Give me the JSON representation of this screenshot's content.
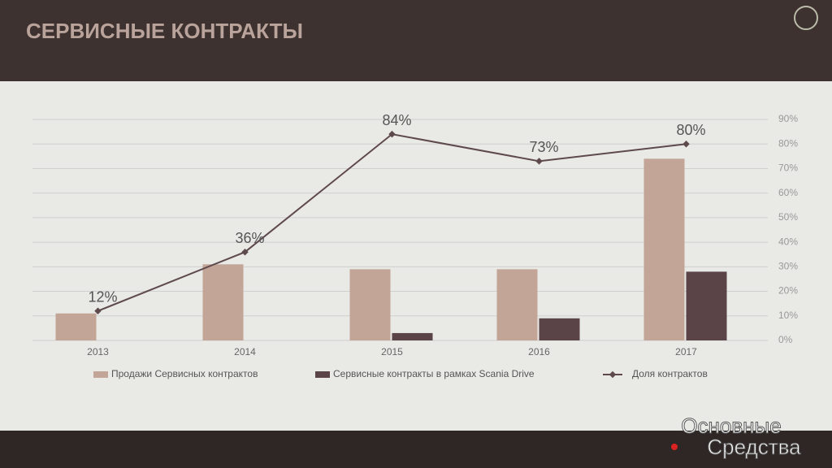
{
  "chart_data": {
    "type": "bar",
    "title": "СЕРВИСНЫЕ КОНТРАКТЫ",
    "categories": [
      "2013",
      "2014",
      "2015",
      "2016",
      "2017"
    ],
    "series": [
      {
        "name": "Продажи Сервисных контрактов",
        "color": "#c3a597",
        "values": [
          11,
          31,
          29,
          29,
          74
        ]
      },
      {
        "name": "Сервисные контракты в рамках Scania Drive",
        "color": "#5a4447",
        "values": [
          0,
          0,
          3,
          9,
          28
        ]
      },
      {
        "name": "Доля контрактов",
        "type": "line",
        "color": "#5e4a4c",
        "values": [
          12,
          36,
          84,
          73,
          80
        ],
        "value_labels": [
          "12%",
          "36%",
          "84%",
          "73%",
          "80%"
        ]
      }
    ],
    "ylim": [
      0,
      90
    ],
    "yticks": [
      {
        "value": 0,
        "label": "0%"
      },
      {
        "value": 10,
        "label": "10%"
      },
      {
        "value": 20,
        "label": "20%"
      },
      {
        "value": 30,
        "label": "30%"
      },
      {
        "value": 40,
        "label": "40%"
      },
      {
        "value": 50,
        "label": "50%"
      },
      {
        "value": 60,
        "label": "60%"
      },
      {
        "value": 70,
        "label": "70%"
      },
      {
        "value": 80,
        "label": "80%"
      },
      {
        "value": 90,
        "label": "90%"
      }
    ],
    "grid": true
  },
  "watermark": [
    "Основные",
    "Средства"
  ]
}
